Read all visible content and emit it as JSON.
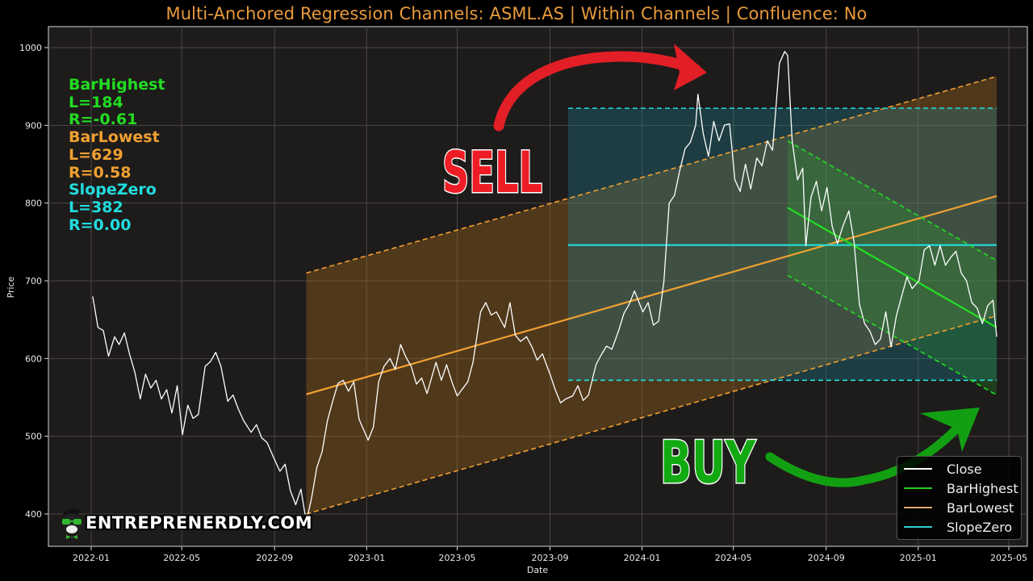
{
  "title": "Multi-Anchored Regression Channels: ASML.AS | Within Channels | Confluence: No",
  "colors": {
    "background": "#000000",
    "plot_bg": "#1e1b1b",
    "title": "#e89a3c",
    "close": "#ffffff",
    "bar_highest": "#22dd22",
    "bar_lowest": "#f0a030",
    "slope_zero": "#22dddd",
    "sell": "#ee1c24",
    "buy": "#11aa11"
  },
  "stats": [
    {
      "label": "BarHighest",
      "color": "#22dd22"
    },
    {
      "label": "L=184",
      "color": "#22dd22"
    },
    {
      "label": "R=-0.61",
      "color": "#22dd22"
    },
    {
      "label": "BarLowest",
      "color": "#f0a030"
    },
    {
      "label": "L=629",
      "color": "#f0a030"
    },
    {
      "label": "R=0.58",
      "color": "#f0a030"
    },
    {
      "label": "SlopeZero",
      "color": "#22dddd"
    },
    {
      "label": "L=382",
      "color": "#22dddd"
    },
    {
      "label": "R=0.00",
      "color": "#22dddd"
    }
  ],
  "legend": {
    "items": [
      {
        "label": "Close",
        "color": "#ffffff"
      },
      {
        "label": "BarHighest",
        "color": "#22dd22"
      },
      {
        "label": "BarLowest",
        "color": "#f0a030"
      },
      {
        "label": "SlopeZero",
        "color": "#22dddd"
      }
    ]
  },
  "annotations": {
    "sell_label": "SELL",
    "buy_label": "BUY"
  },
  "brand": {
    "text": "ENTREPRENERDLY.COM"
  },
  "chart_data": {
    "type": "line",
    "title": "Multi-Anchored Regression Channels: ASML.AS | Within Channels | Confluence: No",
    "xlabel": "Date",
    "ylabel": "Price",
    "ylim": [
      362,
      1027
    ],
    "xlim": [
      "2021-10-27",
      "2025-06-06"
    ],
    "grid": true,
    "legend_position": "lower right",
    "x_ticks": [
      "2022-01",
      "2022-05",
      "2022-09",
      "2023-01",
      "2023-05",
      "2023-09",
      "2024-01",
      "2024-05",
      "2024-09",
      "2025-01",
      "2025-05"
    ],
    "y_ticks": [
      400,
      500,
      600,
      700,
      800,
      900,
      1000
    ],
    "series": [
      {
        "name": "Close",
        "color": "#ffffff",
        "points": [
          [
            "2022-01-03",
            680
          ],
          [
            "2022-01-10",
            640
          ],
          [
            "2022-01-17",
            636
          ],
          [
            "2022-01-24",
            603
          ],
          [
            "2022-02-01",
            628
          ],
          [
            "2022-02-07",
            618
          ],
          [
            "2022-02-14",
            633
          ],
          [
            "2022-02-21",
            605
          ],
          [
            "2022-02-28",
            582
          ],
          [
            "2022-03-07",
            548
          ],
          [
            "2022-03-14",
            580
          ],
          [
            "2022-03-21",
            562
          ],
          [
            "2022-03-28",
            572
          ],
          [
            "2022-04-04",
            548
          ],
          [
            "2022-04-11",
            560
          ],
          [
            "2022-04-18",
            530
          ],
          [
            "2022-04-25",
            565
          ],
          [
            "2022-05-02",
            502
          ],
          [
            "2022-05-09",
            540
          ],
          [
            "2022-05-16",
            523
          ],
          [
            "2022-05-23",
            528
          ],
          [
            "2022-06-01",
            590
          ],
          [
            "2022-06-08",
            596
          ],
          [
            "2022-06-15",
            608
          ],
          [
            "2022-06-22",
            590
          ],
          [
            "2022-07-01",
            545
          ],
          [
            "2022-07-08",
            553
          ],
          [
            "2022-07-15",
            535
          ],
          [
            "2022-07-22",
            520
          ],
          [
            "2022-08-01",
            505
          ],
          [
            "2022-08-08",
            515
          ],
          [
            "2022-08-15",
            498
          ],
          [
            "2022-08-22",
            492
          ],
          [
            "2022-09-01",
            470
          ],
          [
            "2022-09-08",
            455
          ],
          [
            "2022-09-15",
            464
          ],
          [
            "2022-09-22",
            430
          ],
          [
            "2022-09-29",
            412
          ],
          [
            "2022-10-06",
            432
          ],
          [
            "2022-10-13",
            390
          ],
          [
            "2022-10-20",
            420
          ],
          [
            "2022-10-27",
            460
          ],
          [
            "2022-11-03",
            480
          ],
          [
            "2022-11-10",
            520
          ],
          [
            "2022-11-17",
            545
          ],
          [
            "2022-11-24",
            568
          ],
          [
            "2022-12-01",
            572
          ],
          [
            "2022-12-08",
            558
          ],
          [
            "2022-12-15",
            570
          ],
          [
            "2022-12-22",
            522
          ],
          [
            "2023-01-03",
            495
          ],
          [
            "2023-01-10",
            512
          ],
          [
            "2023-01-17",
            570
          ],
          [
            "2023-01-24",
            590
          ],
          [
            "2023-02-01",
            600
          ],
          [
            "2023-02-08",
            586
          ],
          [
            "2023-02-15",
            618
          ],
          [
            "2023-02-22",
            602
          ],
          [
            "2023-03-01",
            590
          ],
          [
            "2023-03-08",
            567
          ],
          [
            "2023-03-15",
            575
          ],
          [
            "2023-03-22",
            555
          ],
          [
            "2023-04-03",
            595
          ],
          [
            "2023-04-10",
            572
          ],
          [
            "2023-04-17",
            592
          ],
          [
            "2023-04-24",
            570
          ],
          [
            "2023-05-01",
            552
          ],
          [
            "2023-05-15",
            570
          ],
          [
            "2023-05-22",
            595
          ],
          [
            "2023-06-01",
            660
          ],
          [
            "2023-06-08",
            672
          ],
          [
            "2023-06-15",
            656
          ],
          [
            "2023-06-22",
            660
          ],
          [
            "2023-07-03",
            640
          ],
          [
            "2023-07-10",
            672
          ],
          [
            "2023-07-17",
            630
          ],
          [
            "2023-07-24",
            622
          ],
          [
            "2023-08-01",
            628
          ],
          [
            "2023-08-08",
            615
          ],
          [
            "2023-08-15",
            598
          ],
          [
            "2023-08-22",
            606
          ],
          [
            "2023-09-01",
            580
          ],
          [
            "2023-09-08",
            560
          ],
          [
            "2023-09-15",
            543
          ],
          [
            "2023-09-22",
            548
          ],
          [
            "2023-10-01",
            552
          ],
          [
            "2023-10-08",
            565
          ],
          [
            "2023-10-15",
            546
          ],
          [
            "2023-10-22",
            553
          ],
          [
            "2023-11-01",
            592
          ],
          [
            "2023-11-08",
            605
          ],
          [
            "2023-11-15",
            616
          ],
          [
            "2023-11-22",
            612
          ],
          [
            "2023-12-01",
            636
          ],
          [
            "2023-12-08",
            658
          ],
          [
            "2023-12-15",
            670
          ],
          [
            "2023-12-22",
            687
          ],
          [
            "2024-01-02",
            660
          ],
          [
            "2024-01-09",
            672
          ],
          [
            "2024-01-16",
            643
          ],
          [
            "2024-01-23",
            648
          ],
          [
            "2024-01-30",
            700
          ],
          [
            "2024-02-06",
            800
          ],
          [
            "2024-02-13",
            810
          ],
          [
            "2024-02-20",
            842
          ],
          [
            "2024-02-27",
            870
          ],
          [
            "2024-03-05",
            878
          ],
          [
            "2024-03-12",
            900
          ],
          [
            "2024-03-15",
            940
          ],
          [
            "2024-03-22",
            890
          ],
          [
            "2024-03-29",
            860
          ],
          [
            "2024-04-05",
            905
          ],
          [
            "2024-04-12",
            880
          ],
          [
            "2024-04-19",
            900
          ],
          [
            "2024-04-26",
            902
          ],
          [
            "2024-05-03",
            830
          ],
          [
            "2024-05-10",
            815
          ],
          [
            "2024-05-17",
            850
          ],
          [
            "2024-05-24",
            818
          ],
          [
            "2024-06-01",
            858
          ],
          [
            "2024-06-08",
            848
          ],
          [
            "2024-06-15",
            880
          ],
          [
            "2024-06-22",
            868
          ],
          [
            "2024-07-01",
            980
          ],
          [
            "2024-07-08",
            995
          ],
          [
            "2024-07-12",
            990
          ],
          [
            "2024-07-18",
            880
          ],
          [
            "2024-07-25",
            830
          ],
          [
            "2024-08-01",
            845
          ],
          [
            "2024-08-05",
            745
          ],
          [
            "2024-08-12",
            808
          ],
          [
            "2024-08-19",
            828
          ],
          [
            "2024-08-26",
            790
          ],
          [
            "2024-09-02",
            820
          ],
          [
            "2024-09-09",
            770
          ],
          [
            "2024-09-16",
            748
          ],
          [
            "2024-09-23",
            770
          ],
          [
            "2024-10-01",
            790
          ],
          [
            "2024-10-08",
            750
          ],
          [
            "2024-10-15",
            670
          ],
          [
            "2024-10-22",
            645
          ],
          [
            "2024-10-29",
            635
          ],
          [
            "2024-11-05",
            618
          ],
          [
            "2024-11-12",
            625
          ],
          [
            "2024-11-19",
            660
          ],
          [
            "2024-11-26",
            615
          ],
          [
            "2024-12-03",
            655
          ],
          [
            "2024-12-10",
            680
          ],
          [
            "2024-12-17",
            705
          ],
          [
            "2024-12-24",
            690
          ],
          [
            "2025-01-02",
            700
          ],
          [
            "2025-01-09",
            740
          ],
          [
            "2025-01-16",
            745
          ],
          [
            "2025-01-23",
            720
          ],
          [
            "2025-01-30",
            745
          ],
          [
            "2025-02-06",
            720
          ],
          [
            "2025-02-13",
            730
          ],
          [
            "2025-02-20",
            738
          ],
          [
            "2025-02-27",
            710
          ],
          [
            "2025-03-06",
            700
          ],
          [
            "2025-03-13",
            672
          ],
          [
            "2025-03-20",
            665
          ],
          [
            "2025-03-27",
            645
          ],
          [
            "2025-04-03",
            668
          ],
          [
            "2025-04-10",
            675
          ],
          [
            "2025-04-15",
            628
          ]
        ]
      },
      {
        "name": "BarLowest",
        "color": "#f0a030",
        "anchor_start": "2022-10-13",
        "end": "2025-04-15",
        "center": [
          554,
          809
        ],
        "upper": [
          710,
          963
        ],
        "lower": [
          400,
          655
        ]
      },
      {
        "name": "SlopeZero",
        "color": "#22dddd",
        "anchor_start": "2023-09-25",
        "end": "2025-04-15",
        "center": [
          746,
          746
        ],
        "upper": [
          922,
          922
        ],
        "lower": [
          572,
          572
        ]
      },
      {
        "name": "BarHighest",
        "color": "#22dd22",
        "anchor_start": "2024-07-12",
        "end": "2025-04-15",
        "center": [
          794,
          640
        ],
        "upper": [
          880,
          726
        ],
        "lower": [
          707,
          553
        ]
      }
    ]
  }
}
